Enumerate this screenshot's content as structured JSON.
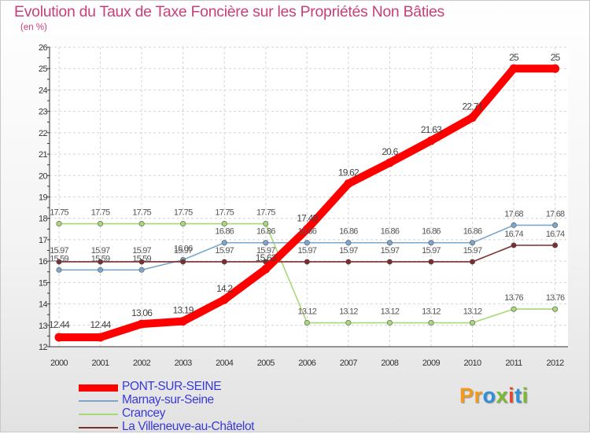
{
  "title": "Evolution du Taux de Taxe Foncière sur les Propriétés Non Bâties",
  "unit": "(en %)",
  "logo": {
    "text": "Proxiti",
    "letters": [
      "P",
      "r",
      "o",
      "x",
      "i",
      "t",
      "i"
    ],
    "colors": [
      "#f29a1e",
      "#f29a1e",
      "#2f8fd8",
      "#7db832",
      "#e3492b",
      "#2f8fd8",
      "#7db832"
    ]
  },
  "chart_data": {
    "type": "line",
    "title": "Evolution du Taux de Taxe Foncière sur les Propriétés Non Bâties",
    "ylabel": "(en %)",
    "xlabel": "",
    "ylim": [
      12,
      26
    ],
    "yticks": [
      12,
      13,
      14,
      15,
      16,
      17,
      18,
      19,
      20,
      21,
      22,
      23,
      24,
      25,
      26
    ],
    "categories": [
      "2000",
      "2001",
      "2002",
      "2003",
      "2004",
      "2005",
      "2006",
      "2007",
      "2008",
      "2009",
      "2010",
      "2011",
      "2012"
    ],
    "series": [
      {
        "name": "PONT-SUR-SEINE",
        "color": "#ff0000",
        "values": [
          12.44,
          12.44,
          13.06,
          13.19,
          14.2,
          15.63,
          17.49,
          19.62,
          20.6,
          21.63,
          22.71,
          25,
          25
        ],
        "labels": [
          "12.44",
          "12.44",
          "13.06",
          "13.19",
          "14.2",
          "15.63",
          "17.49",
          "19.62",
          "20.6",
          "21.63",
          "22.71",
          "25",
          "25"
        ]
      },
      {
        "name": "Marnay-sur-Seine",
        "color": "#7ba7cc",
        "values": [
          15.59,
          15.59,
          15.59,
          16.06,
          16.86,
          16.86,
          16.86,
          16.86,
          16.86,
          16.86,
          16.86,
          17.68,
          17.68
        ],
        "labels": [
          "15.59",
          "15.59",
          "15.59",
          "16.06",
          "16.86",
          "16.86",
          "16.86",
          "16.86",
          "16.86",
          "16.86",
          "16.86",
          "17.68",
          "17.68"
        ]
      },
      {
        "name": "Crancey",
        "color": "#a8d878",
        "values": [
          17.75,
          17.75,
          17.75,
          17.75,
          17.75,
          17.75,
          13.12,
          13.12,
          13.12,
          13.12,
          13.12,
          13.76,
          13.76
        ],
        "labels": [
          "17.75",
          "17.75",
          "17.75",
          "17.75",
          "17.75",
          "17.75",
          "13.12",
          "13.12",
          "13.12",
          "13.12",
          "13.12",
          "13.76",
          "13.76"
        ]
      },
      {
        "name": "La Villeneuve-au-Châtelot",
        "color": "#7a2e2e",
        "values": [
          15.97,
          15.97,
          15.97,
          15.97,
          15.97,
          15.97,
          15.97,
          15.97,
          15.97,
          15.97,
          15.97,
          16.74,
          16.74
        ],
        "labels": [
          "15.97",
          "15.97",
          "15.97",
          "15.97",
          "15.97",
          "15.97",
          "15.97",
          "15.97",
          "15.97",
          "15.97",
          "15.97",
          "16.74",
          "16.74"
        ]
      }
    ],
    "legend_position": "bottom-left"
  }
}
